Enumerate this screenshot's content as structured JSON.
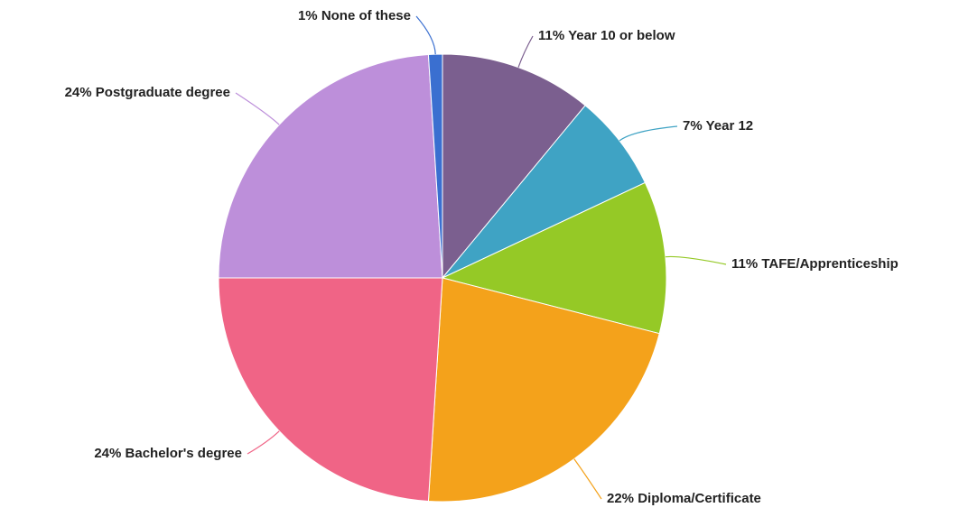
{
  "chart_data": {
    "type": "pie",
    "categories": [
      "Year 10 or below",
      "Year 12",
      "TAFE/Apprenticeship",
      "Diploma/Certificate",
      "Bachelor's degree",
      "Postgraduate degree",
      "None of these"
    ],
    "values": [
      11,
      7,
      11,
      22,
      24,
      24,
      1
    ],
    "value_labels": [
      "11%",
      "7%",
      "11%",
      "22%",
      "24%",
      "24%",
      "1%"
    ],
    "colors": [
      "#7b5f8f",
      "#3fa3c4",
      "#95c926",
      "#f4a21b",
      "#f06486",
      "#bd8fda",
      "#3a6fd0"
    ]
  }
}
